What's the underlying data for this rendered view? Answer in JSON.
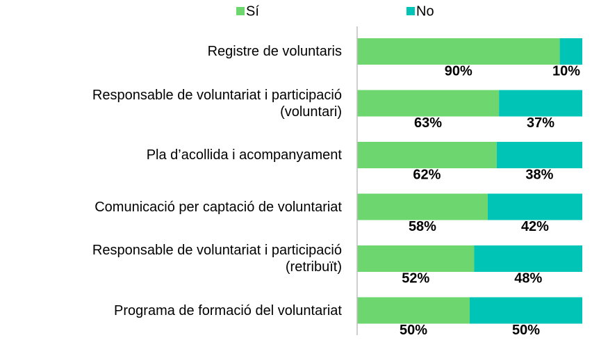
{
  "chart_data": {
    "type": "bar",
    "orientation": "horizontal",
    "stacked": true,
    "categories": [
      "Registre de voluntaris",
      "Responsable de voluntariat i participació\n(voluntari)",
      "Pla d’acollida i acompanyament",
      "Comunicació per captació de voluntariat",
      "Responsable de voluntariat i participació\n(retribuït)",
      "Programa de formació del voluntariat"
    ],
    "series": [
      {
        "name": "Sí",
        "color": "#6dd66f",
        "values": [
          90,
          63,
          62,
          58,
          52,
          50
        ],
        "value_labels": [
          "90%",
          "63%",
          "62%",
          "58%",
          "52%",
          "50%"
        ]
      },
      {
        "name": "No",
        "color": "#00c4b6",
        "values": [
          10,
          37,
          38,
          42,
          48,
          50
        ],
        "value_labels": [
          "10%",
          "37%",
          "38%",
          "42%",
          "48%",
          "50%"
        ]
      }
    ],
    "xlim": [
      0,
      100
    ],
    "legend": "top"
  }
}
